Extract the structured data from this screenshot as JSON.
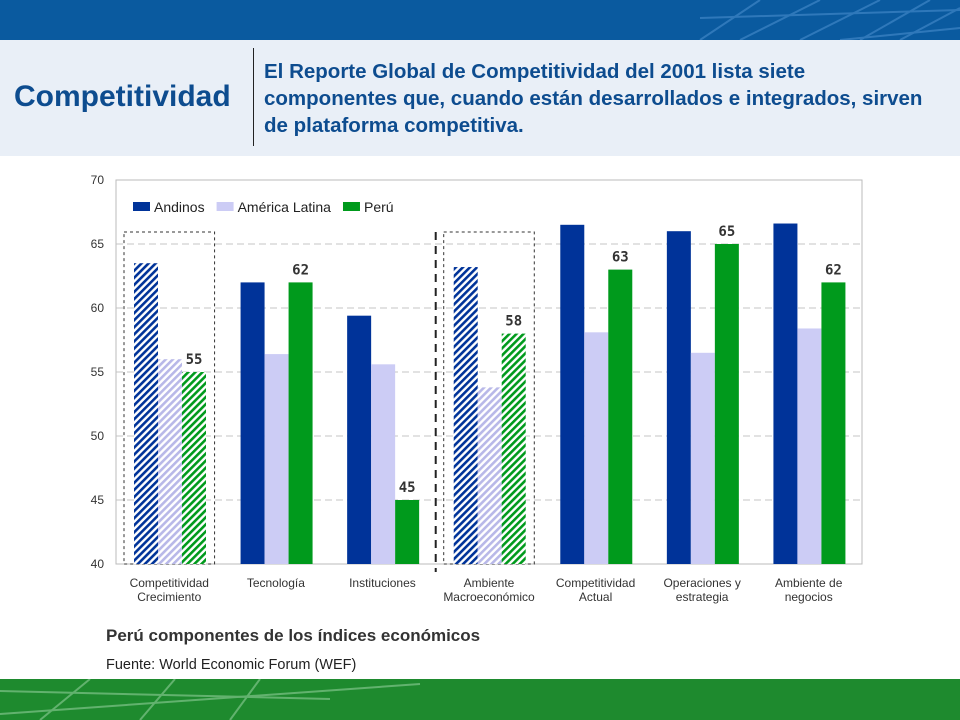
{
  "header": {
    "section_title": "Competitividad",
    "headline": "El Reporte Global de Competitividad del 2001 lista siete componentes que, cuando están desarrollados e integrados, sirven de plataforma competitiva."
  },
  "chart_title": "Perú componentes de los índices económicos",
  "source": "Fuente: World Economic Forum (WEF)",
  "colors": {
    "top_band": "#0a5a9f",
    "bottom_band": "#1e8a2e",
    "andinos": "#003399",
    "america_latina": "#ccccf5",
    "peru": "#009a1c"
  },
  "chart_data": {
    "type": "bar",
    "categories": [
      [
        "Competitividad",
        "Crecimiento"
      ],
      [
        "Tecnología"
      ],
      [
        "Instituciones"
      ],
      [
        "Ambiente",
        "Macroeconómico"
      ],
      [
        "Competitividad",
        "Actual"
      ],
      [
        "Operaciones y",
        "estrategia"
      ],
      [
        "Ambiente de",
        "negocios"
      ]
    ],
    "series": [
      {
        "name": "Andinos",
        "color": "#003399",
        "values": [
          63.5,
          62,
          59.4,
          63.2,
          66.5,
          66,
          66.6
        ]
      },
      {
        "name": "América Latina",
        "color": "#ccccf5",
        "values": [
          56,
          56.4,
          55.6,
          53.8,
          58.1,
          56.5,
          58.4
        ]
      },
      {
        "name": "Perú",
        "color": "#009a1c",
        "values": [
          55,
          62,
          45,
          58,
          63,
          65,
          62
        ]
      }
    ],
    "data_labels": [
      "55",
      "62",
      "45",
      "58",
      "63",
      "65",
      "62"
    ],
    "highlighted_categories": [
      0,
      3
    ],
    "ylim": [
      40,
      70
    ],
    "yticks": [
      40,
      45,
      50,
      55,
      60,
      65,
      70
    ],
    "grid": true,
    "legend": "top-left"
  }
}
